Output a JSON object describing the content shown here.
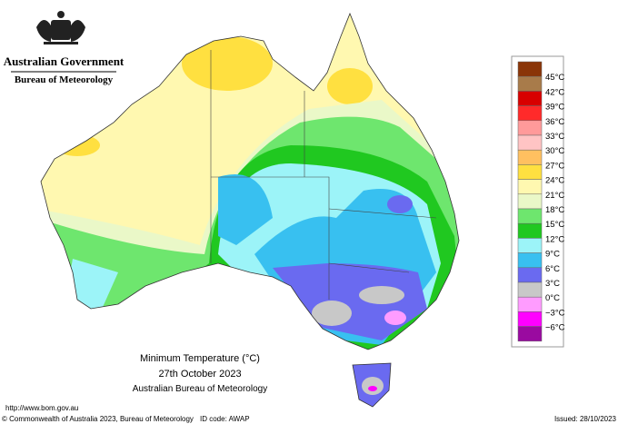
{
  "header": {
    "government": "Australian Government",
    "agency": "Bureau of Meteorology"
  },
  "map_title": {
    "line1": "Minimum Temperature (°C)",
    "line2": "27th October 2023",
    "line3": "Australian Bureau of Meteorology"
  },
  "legend": {
    "colors": [
      "#8a3508",
      "#a87b4a",
      "#d80000",
      "#ff2a2a",
      "#ff9a9a",
      "#ffc4c4",
      "#ffc060",
      "#ffe040",
      "#fff8b0",
      "#eaf8c8",
      "#6ee66e",
      "#20c820",
      "#9cf4f8",
      "#38c0f0",
      "#6a6af0",
      "#c8c8c8",
      "#ff9cff",
      "#ff00ff",
      "#9a0aa0"
    ],
    "labels": [
      "45°C",
      "42°C",
      "39°C",
      "36°C",
      "33°C",
      "30°C",
      "27°C",
      "24°C",
      "21°C",
      "18°C",
      "15°C",
      "12°C",
      "9°C",
      "6°C",
      "3°C",
      "0°C",
      "−3°C",
      "−6°C"
    ]
  },
  "footer": {
    "url": "http://www.bom.gov.au",
    "copyright": "© Commonwealth of Australia 2023, Bureau of Meteorology",
    "id_code": "ID code: AWAP",
    "issued": "Issued: 28/10/2023"
  }
}
